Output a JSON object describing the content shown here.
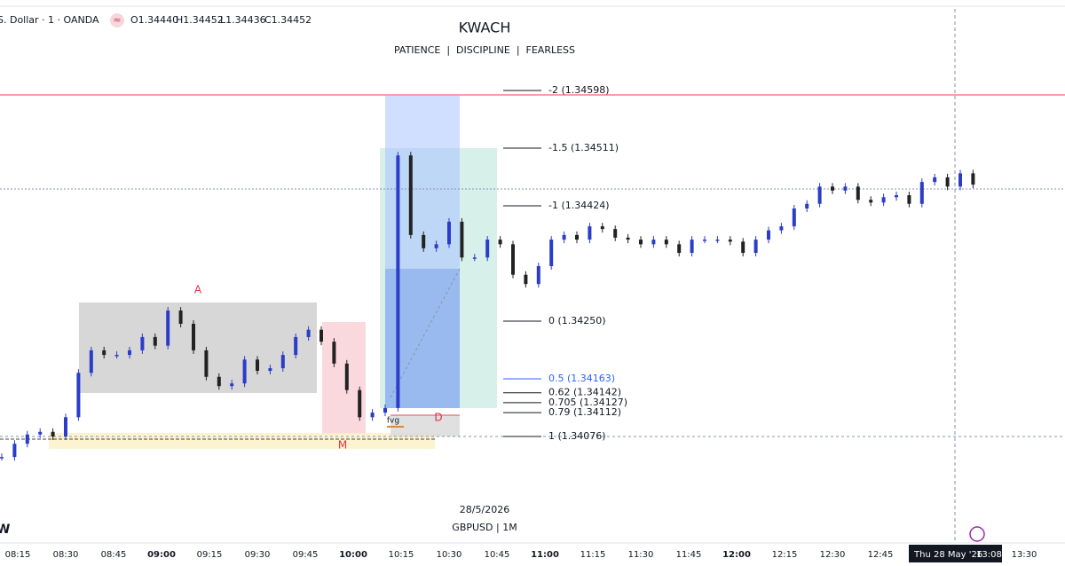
{
  "header": {
    "symbol": "S. Dollar · 1 · OANDA",
    "open": "O1.34440",
    "high": "H1.34452",
    "low": "L1.34436",
    "close": "C1.34452"
  },
  "title": "KWACH",
  "subtitle": "PATIENCE  |  DISCIPLINE  |  FEARLESS",
  "fib_levels": [
    {
      "value": 1.34598,
      "label": "-2 (1.34598)"
    },
    {
      "value": 1.34511,
      "label": "-1.5 (1.34511)"
    },
    {
      "value": 1.34424,
      "label": "-1 (1.34424)"
    },
    {
      "value": 1.3425,
      "label": "0 (1.34250)"
    },
    {
      "value": 1.34163,
      "label": "0.5 (1.34163)"
    },
    {
      "value": 1.34142,
      "label": "0.62 (1.34142)"
    },
    {
      "value": 1.34127,
      "label": "0.705 (1.34127)"
    },
    {
      "value": 1.34112,
      "label": "0.79 (1.34112)"
    },
    {
      "value": 1.34076,
      "label": "1 (1.34076)"
    }
  ],
  "annotations": {
    "a": "A",
    "m": "M",
    "d": "D",
    "fvg": "fvg"
  },
  "date_caption": "28/5/2026",
  "pair_caption": "GBPUSD | 1M",
  "logo": "W",
  "time_axis": [
    "08:15",
    "08:30",
    "08:45",
    "09:00",
    "09:15",
    "09:30",
    "09:45",
    "10:00",
    "10:15",
    "10:30",
    "10:45",
    "11:00",
    "11:15",
    "11:30",
    "11:45",
    "12:00",
    "12:15",
    "12:30",
    "12:45",
    "13:30"
  ],
  "cursor_label": {
    "date": "Thu 28 May '26",
    "time": "13:08"
  },
  "closes": [
    1.34045,
    1.34065,
    1.34079,
    1.34083,
    1.34076,
    1.34105,
    1.34172,
    1.34206,
    1.34199,
    1.34199,
    1.34206,
    1.34226,
    1.34213,
    1.34266,
    1.34246,
    1.34206,
    1.34166,
    1.34152,
    1.34156,
    1.34192,
    1.34175,
    1.34179,
    1.34199,
    1.34226,
    1.34237,
    1.34219,
    1.34186,
    1.34146,
    1.34105,
    1.34112,
    1.34119,
    1.345,
    1.3438,
    1.3436,
    1.34366,
    1.344,
    1.34346,
    1.34346,
    1.34373,
    1.34366,
    1.3432,
    1.34306,
    1.34333,
    1.34373,
    1.3438,
    1.34373,
    1.34393,
    1.34389,
    1.34376,
    1.34373,
    1.34366,
    1.34373,
    1.34366,
    1.34353,
    1.34373,
    1.34373,
    1.34373,
    1.3437,
    1.34353,
    1.34373,
    1.34387,
    1.34393,
    1.3442,
    1.34427,
    1.34453,
    1.34447,
    1.34453,
    1.34433,
    1.34429,
    1.34437,
    1.3444,
    1.34427,
    1.3446,
    1.34467,
    1.34453,
    1.34473,
    1.34456
  ]
}
